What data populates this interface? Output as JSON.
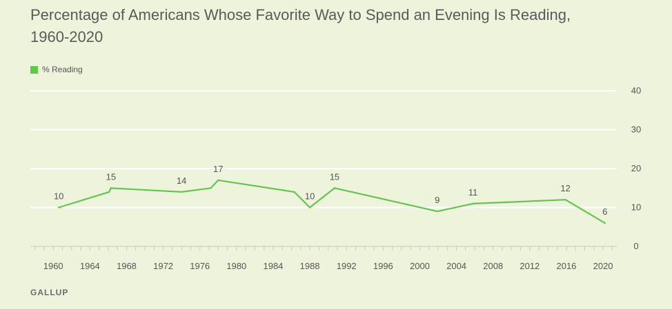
{
  "chart_data": {
    "type": "line",
    "title": "Percentage of Americans Whose Favorite Way to Spend an Evening Is Reading, 1960-2020",
    "xlabel": "",
    "ylabel": "",
    "xlim": [
      1957.5,
      2021.5
    ],
    "ylim": [
      0,
      40
    ],
    "yticks": [
      0,
      10,
      20,
      30,
      40
    ],
    "xticks": [
      1960,
      1964,
      1968,
      1972,
      1976,
      1980,
      1984,
      1988,
      1992,
      1996,
      2000,
      2004,
      2008,
      2012,
      2016,
      2020
    ],
    "grid": true,
    "legend_position": "top-left",
    "series": [
      {
        "name": "% Reading",
        "color": "#63c44f",
        "points": [
          {
            "x": 1960.6,
            "y": 10,
            "label": "10"
          },
          {
            "x": 1966.1,
            "y": 14,
            "label": ""
          },
          {
            "x": 1966.3,
            "y": 15,
            "label": "15"
          },
          {
            "x": 1974.0,
            "y": 14,
            "label": "14"
          },
          {
            "x": 1977.2,
            "y": 15,
            "label": ""
          },
          {
            "x": 1978.0,
            "y": 17,
            "label": "17"
          },
          {
            "x": 1986.3,
            "y": 14,
            "label": ""
          },
          {
            "x": 1988.0,
            "y": 10,
            "label": "10"
          },
          {
            "x": 1990.7,
            "y": 15,
            "label": "15"
          },
          {
            "x": 2001.9,
            "y": 9,
            "label": "9"
          },
          {
            "x": 2005.8,
            "y": 11,
            "label": "11"
          },
          {
            "x": 2015.9,
            "y": 12,
            "label": "12"
          },
          {
            "x": 2020.2,
            "y": 6,
            "label": "6"
          }
        ]
      }
    ]
  },
  "source": "GALLUP",
  "colors": {
    "background": "#eef3dc",
    "gridline": "#ffffff",
    "axis": "#c7c9bd",
    "text": "#555555"
  }
}
